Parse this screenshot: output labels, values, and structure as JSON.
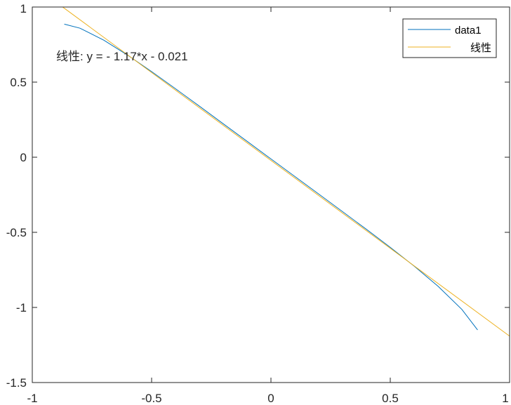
{
  "chart_data": {
    "type": "line",
    "title": "",
    "xlabel": "",
    "ylabel": "",
    "xlim": [
      -1,
      1
    ],
    "ylim": [
      -1.5,
      1
    ],
    "grid": false,
    "legend_placement": "top-right",
    "x_ticks": [
      "-1",
      "-0.5",
      "0",
      "0.5",
      "1"
    ],
    "x_tick_values": [
      -1,
      -0.5,
      0,
      0.5,
      1
    ],
    "y_ticks": [
      "1",
      "0.5",
      "0",
      "-0.5",
      "-1",
      "-1.5"
    ],
    "y_tick_values": [
      1,
      0.5,
      0,
      -0.5,
      -1,
      -1.5
    ],
    "series": [
      {
        "name": "data1",
        "color": "#0072BD",
        "x": [
          -0.866,
          -0.8,
          -0.7,
          -0.6,
          -0.5,
          -0.4,
          -0.3,
          -0.2,
          -0.1,
          0,
          0.1,
          0.2,
          0.3,
          0.4,
          0.5,
          0.6,
          0.7,
          0.8,
          0.866
        ],
        "y": [
          0.886,
          0.859,
          0.779,
          0.679,
          0.57,
          0.456,
          0.34,
          0.223,
          0.106,
          -0.011,
          -0.128,
          -0.245,
          -0.362,
          -0.48,
          -0.6,
          -0.725,
          -0.859,
          -1.013,
          -1.15
        ]
      },
      {
        "name": "线性",
        "color": "#EDB120",
        "fit": {
          "slope": -1.17,
          "intercept": -0.021
        },
        "x": [
          -0.872,
          1
        ],
        "y": [
          0.999,
          -1.191
        ]
      }
    ],
    "annotation": "线性:  y = - 1.17*x - 0.021"
  }
}
